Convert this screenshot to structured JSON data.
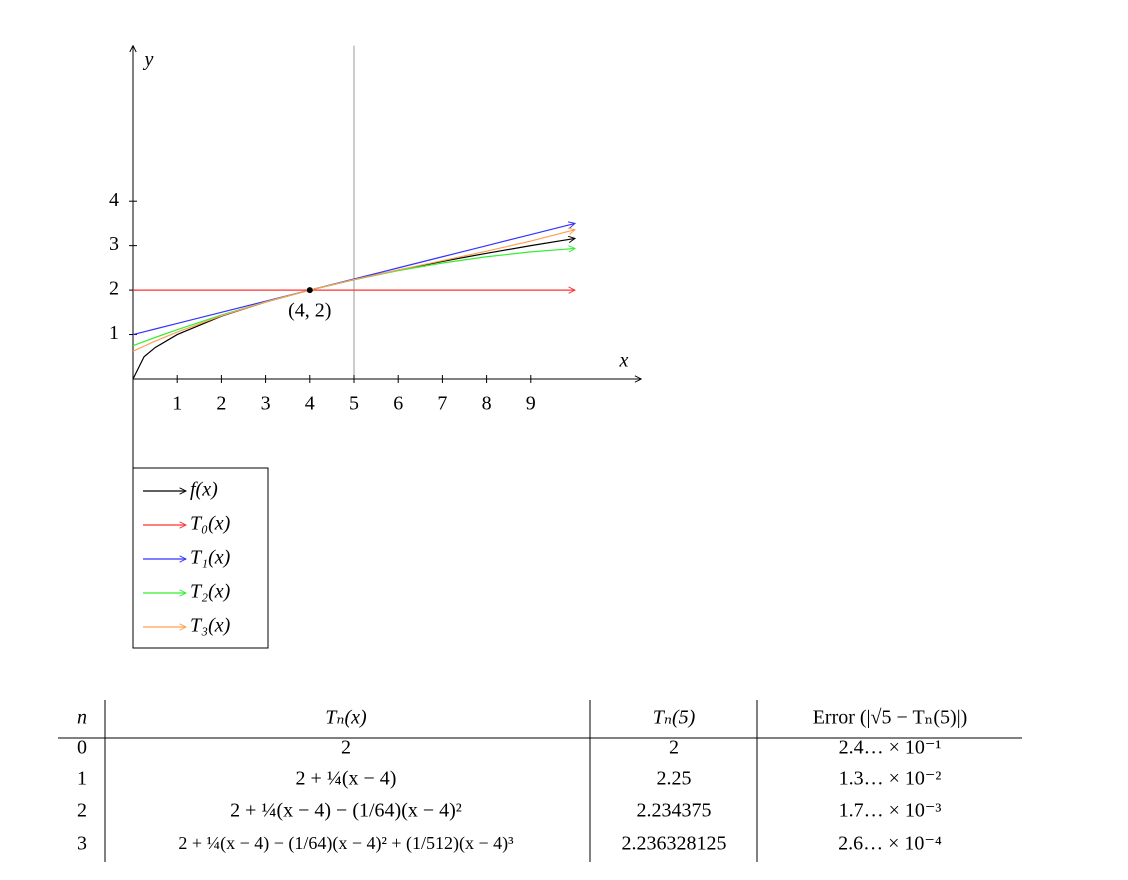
{
  "chart_data": {
    "type": "line",
    "x": [
      0,
      0.25,
      0.5,
      1,
      2,
      3,
      4,
      5,
      6,
      7,
      8,
      9,
      10
    ],
    "series": [
      {
        "name": "f(x)",
        "color": "#000000",
        "values": [
          0,
          0.5,
          0.7071,
          1,
          1.4142,
          1.7321,
          2,
          2.2361,
          2.4495,
          2.6458,
          2.8284,
          3,
          3.1623
        ]
      },
      {
        "name": "T₀(x)",
        "color": "#ff3333",
        "values": [
          2,
          2,
          2,
          2,
          2,
          2,
          2,
          2,
          2,
          2,
          2,
          2,
          2
        ]
      },
      {
        "name": "T₁(x)",
        "color": "#3333ff",
        "values": [
          1,
          1.0625,
          1.125,
          1.25,
          1.5,
          1.75,
          2,
          2.25,
          2.5,
          2.75,
          3,
          3.25,
          3.5
        ]
      },
      {
        "name": "T₂(x)",
        "color": "#33ee33",
        "values": [
          0.75,
          0.8428,
          0.9336,
          1.1094,
          1.4375,
          1.7344,
          2,
          2.2344,
          2.4375,
          2.6094,
          2.75,
          2.8594,
          2.9375
        ]
      },
      {
        "name": "T₃(x)",
        "color": "#ffa050",
        "values": [
          0.625,
          0.7398,
          0.8499,
          1.0566,
          1.4219,
          1.7324,
          2,
          2.2363,
          2.4531,
          2.6621,
          2.875,
          3.1035,
          3.3594
        ]
      }
    ],
    "xlabel": "x",
    "ylabel": "y",
    "xlim": [
      0,
      11.5
    ],
    "ylim": [
      -2,
      7.5
    ],
    "xticks": [
      1,
      2,
      3,
      4,
      5,
      6,
      7,
      8,
      9
    ],
    "yticks": [
      1,
      2,
      3,
      4
    ],
    "vline_x": 5,
    "point": {
      "x": 4,
      "y": 2,
      "label": "(4, 2)"
    },
    "legend": "bottom-left"
  },
  "table": {
    "header": [
      "n",
      "Tₙ(x)",
      "Tₙ(5)",
      "Error (|√5 − Tₙ(5)|)"
    ],
    "rows": [
      [
        "0",
        "2",
        "2",
        "2.4… × 10⁻¹"
      ],
      [
        "1",
        "2 + ¼(x − 4)",
        "2.25",
        "1.3… × 10⁻²"
      ],
      [
        "2",
        "2 + ¼(x − 4) − (1/64)(x − 4)²",
        "2.234375",
        "1.7… × 10⁻³"
      ],
      [
        "3",
        "2 + ¼(x − 4) − (1/64)(x − 4)² + (1/512)(x − 4)³",
        "2.236328125",
        "2.6… × 10⁻⁴"
      ]
    ]
  }
}
